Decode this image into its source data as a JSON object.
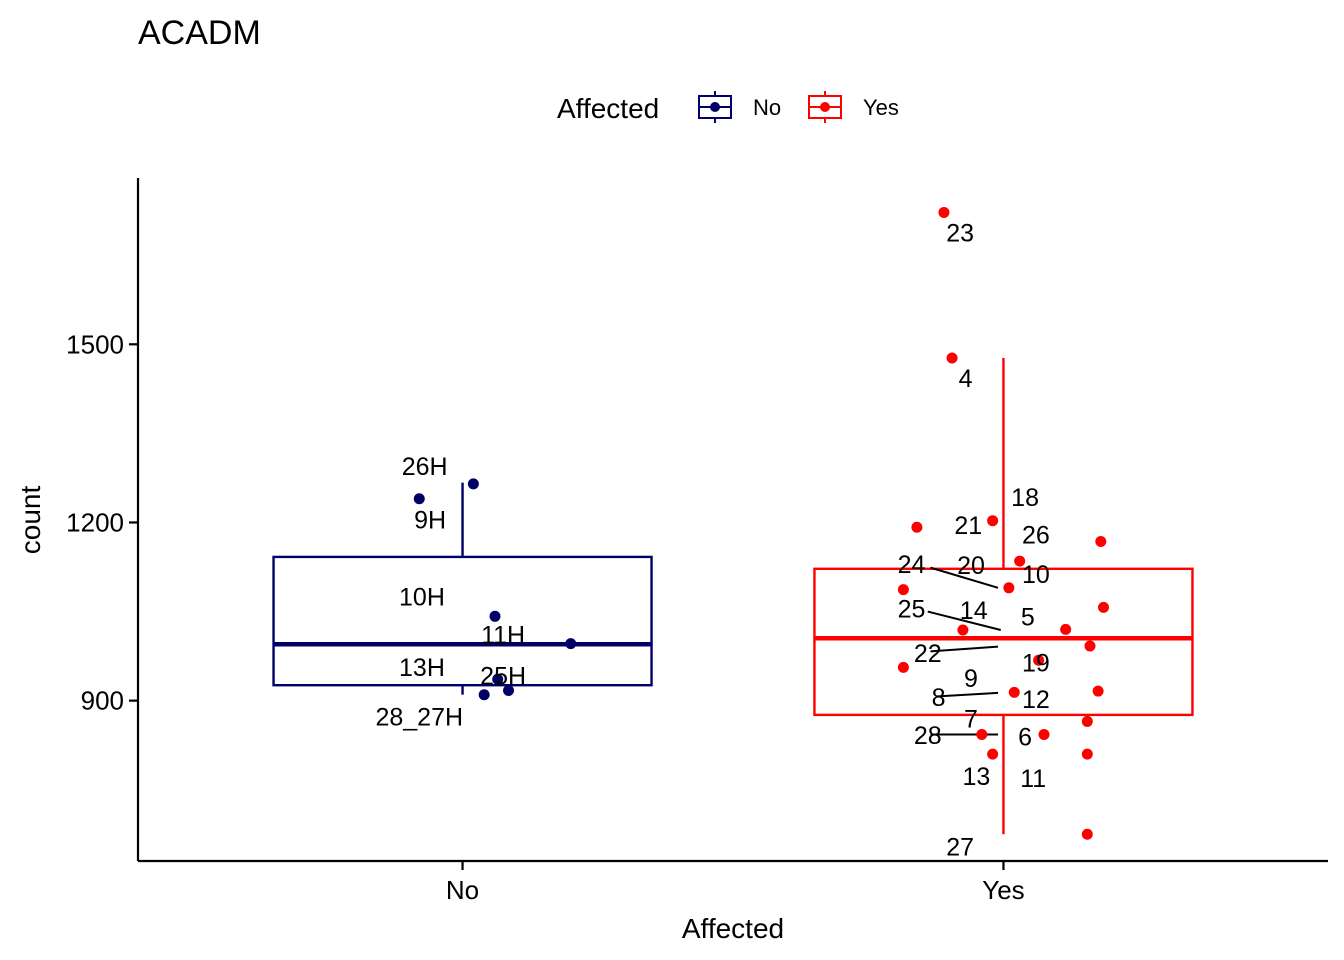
{
  "chart_data": {
    "type": "box",
    "title": "ACADM",
    "xlabel": "Affected",
    "ylabel": "count",
    "ylim": [
      630,
      1780
    ],
    "yticks": [
      900,
      1200,
      1500
    ],
    "categories": [
      "No",
      "Yes"
    ],
    "legend": {
      "title": "Affected",
      "position": "top",
      "entries": [
        {
          "label": "No",
          "color": "#000066"
        },
        {
          "label": "Yes",
          "color": "#ff0000"
        }
      ]
    },
    "boxes": [
      {
        "group": "No",
        "color": "#000066",
        "min": 910,
        "q1": 926,
        "median": 995,
        "q3": 1142,
        "max": 1267
      },
      {
        "group": "Yes",
        "color": "#ff0000",
        "min": 675,
        "q1": 876,
        "median": 1005,
        "q3": 1122,
        "max": 1477
      }
    ],
    "points": [
      {
        "group": "No",
        "x": 0.92,
        "y": 1240,
        "label": "9H"
      },
      {
        "group": "No",
        "x": 1.02,
        "y": 1265,
        "label": "26H"
      },
      {
        "group": "No",
        "x": 1.06,
        "y": 1042,
        "label": "10H"
      },
      {
        "group": "No",
        "x": 1.2,
        "y": 996,
        "label": "11H"
      },
      {
        "group": "No",
        "x": 1.065,
        "y": 936,
        "label": "13H"
      },
      {
        "group": "No",
        "x": 1.085,
        "y": 917,
        "label": "25H"
      },
      {
        "group": "No",
        "x": 1.04,
        "y": 910,
        "label": "28_27H"
      },
      {
        "group": "Yes",
        "x": 1.89,
        "y": 1722,
        "label": "23"
      },
      {
        "group": "Yes",
        "x": 1.905,
        "y": 1477,
        "label": "4"
      },
      {
        "group": "Yes",
        "x": 1.98,
        "y": 1203,
        "label": "18"
      },
      {
        "group": "Yes",
        "x": 1.84,
        "y": 1192,
        "label": "21"
      },
      {
        "group": "Yes",
        "x": 2.03,
        "y": 1135,
        "label": "26"
      },
      {
        "group": "Yes",
        "x": 2.18,
        "y": 1168
      },
      {
        "group": "Yes",
        "x": 1.815,
        "y": 1087,
        "label": "24"
      },
      {
        "group": "Yes",
        "x": 2.01,
        "y": 1090,
        "label": "10"
      },
      {
        "group": "Yes",
        "x": 2.185,
        "y": 1057
      },
      {
        "group": "Yes",
        "x": 1.925,
        "y": 1019,
        "label": "14"
      },
      {
        "group": "Yes",
        "x": 2.115,
        "y": 1020,
        "label": "5"
      },
      {
        "group": "Yes",
        "x": 2.16,
        "y": 992
      },
      {
        "group": "Yes",
        "x": 2.065,
        "y": 968,
        "label": "19"
      },
      {
        "group": "Yes",
        "x": 1.815,
        "y": 956
      },
      {
        "group": "Yes",
        "x": 2.02,
        "y": 914,
        "label": "12"
      },
      {
        "group": "Yes",
        "x": 2.175,
        "y": 916
      },
      {
        "group": "Yes",
        "x": 2.155,
        "y": 865
      },
      {
        "group": "Yes",
        "x": 1.96,
        "y": 843,
        "label": "7"
      },
      {
        "group": "Yes",
        "x": 2.075,
        "y": 843,
        "label": "6"
      },
      {
        "group": "Yes",
        "x": 1.98,
        "y": 810,
        "label": "13"
      },
      {
        "group": "Yes",
        "x": 2.155,
        "y": 810,
        "label": "11"
      },
      {
        "group": "Yes",
        "x": 2.155,
        "y": 675,
        "label": "27"
      }
    ],
    "point_labels": [
      {
        "text": "26H",
        "x": 0.93,
        "y": 1295
      },
      {
        "text": "9H",
        "x": 0.94,
        "y": 1205
      },
      {
        "text": "10H",
        "x": 0.925,
        "y": 1075
      },
      {
        "text": "11H",
        "x": 1.075,
        "y": 1011
      },
      {
        "text": "13H",
        "x": 0.925,
        "y": 957
      },
      {
        "text": "25H",
        "x": 1.075,
        "y": 942
      },
      {
        "text": "28_27H",
        "x": 0.92,
        "y": 873
      },
      {
        "text": "23",
        "x": 1.92,
        "y": 1688
      },
      {
        "text": "4",
        "x": 1.93,
        "y": 1443
      },
      {
        "text": "18",
        "x": 2.04,
        "y": 1243
      },
      {
        "text": "21",
        "x": 1.935,
        "y": 1196
      },
      {
        "text": "26",
        "x": 2.06,
        "y": 1180
      },
      {
        "text": "24",
        "x": 1.83,
        "y": 1130
      },
      {
        "text": "20",
        "x": 1.94,
        "y": 1128
      },
      {
        "text": "10",
        "x": 2.06,
        "y": 1113
      },
      {
        "text": "25",
        "x": 1.83,
        "y": 1055
      },
      {
        "text": "14",
        "x": 1.945,
        "y": 1053
      },
      {
        "text": "5",
        "x": 2.045,
        "y": 1042
      },
      {
        "text": "22",
        "x": 1.86,
        "y": 980
      },
      {
        "text": "19",
        "x": 2.06,
        "y": 964
      },
      {
        "text": "9",
        "x": 1.94,
        "y": 938
      },
      {
        "text": "8",
        "x": 1.88,
        "y": 906
      },
      {
        "text": "12",
        "x": 2.06,
        "y": 903
      },
      {
        "text": "7",
        "x": 1.94,
        "y": 870
      },
      {
        "text": "28",
        "x": 1.86,
        "y": 842
      },
      {
        "text": "6",
        "x": 2.04,
        "y": 840
      },
      {
        "text": "13",
        "x": 1.95,
        "y": 773
      },
      {
        "text": "11",
        "x": 2.055,
        "y": 770
      },
      {
        "text": "27",
        "x": 1.92,
        "y": 654
      }
    ],
    "label_segments": [
      [
        [
          1.865,
          1124
        ],
        [
          1.99,
          1090
        ]
      ],
      [
        [
          1.86,
          1050
        ],
        [
          1.995,
          1019
        ]
      ],
      [
        [
          1.865,
          983
        ],
        [
          1.99,
          991
        ]
      ],
      [
        [
          1.875,
          907
        ],
        [
          1.99,
          913
        ]
      ],
      [
        [
          1.865,
          843
        ],
        [
          1.99,
          843
        ]
      ]
    ]
  }
}
